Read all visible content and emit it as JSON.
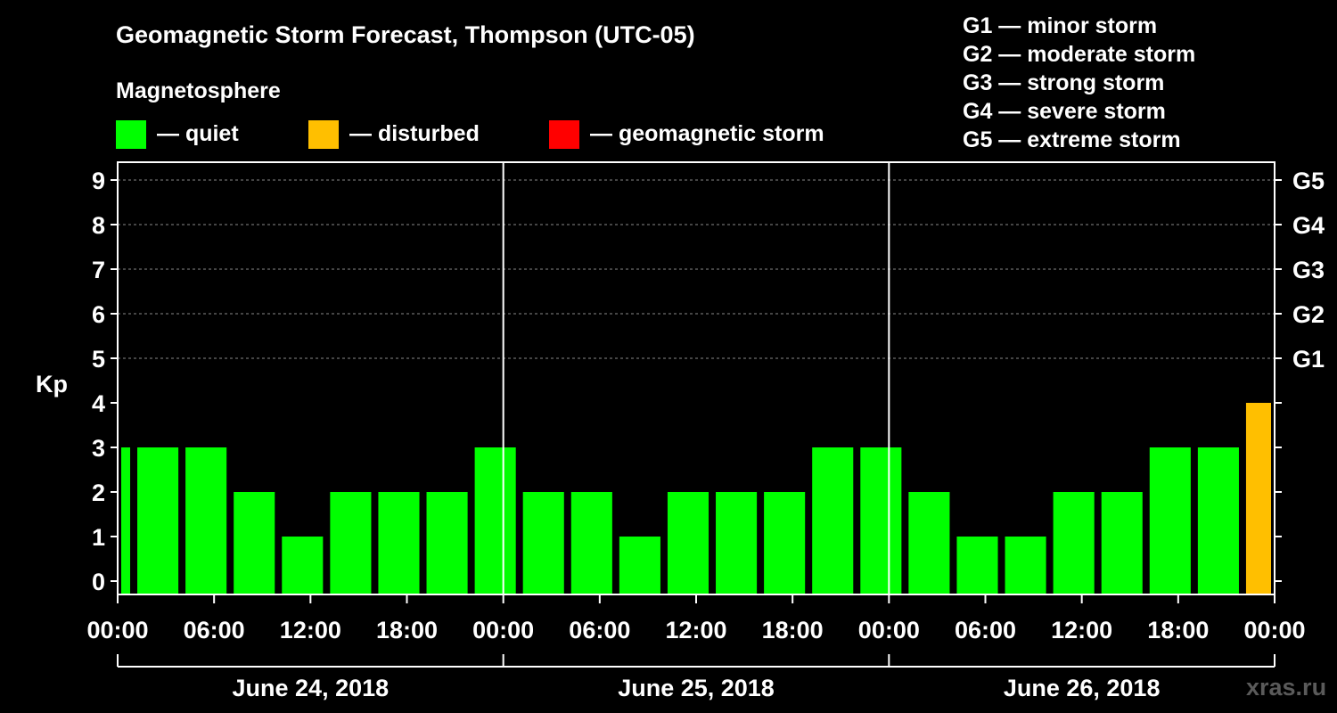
{
  "title": "Geomagnetic Storm Forecast, Thompson (UTC-05)",
  "legend": {
    "heading": "Magnetosphere",
    "items": [
      {
        "label": "— quiet",
        "color": "#00ff00"
      },
      {
        "label": "— disturbed",
        "color": "#ffbf00"
      },
      {
        "label": "— geomagnetic storm",
        "color": "#ff0000"
      }
    ]
  },
  "storm_scale": [
    "G1 — minor storm",
    "G2 — moderate storm",
    "G3 — strong storm",
    "G4 — severe storm",
    "G5 — extreme storm"
  ],
  "watermark": "xras.ru",
  "chart_data": {
    "type": "bar",
    "ylabel": "Kp",
    "ylim": [
      0,
      9
    ],
    "yticks": [
      0,
      1,
      2,
      3,
      4,
      5,
      6,
      7,
      8,
      9
    ],
    "g_levels": [
      {
        "label": "G1",
        "kp": 5
      },
      {
        "label": "G2",
        "kp": 6
      },
      {
        "label": "G3",
        "kp": 7
      },
      {
        "label": "G4",
        "kp": 8
      },
      {
        "label": "G5",
        "kp": 9
      }
    ],
    "grid": "horizontal dashed at Kp 5-9",
    "x_tick_labels": [
      "00:00",
      "06:00",
      "12:00",
      "18:00",
      "00:00",
      "06:00",
      "12:00",
      "18:00",
      "00:00",
      "06:00",
      "12:00",
      "18:00",
      "00:00"
    ],
    "days": [
      "June 24, 2018",
      "June 25, 2018",
      "June 26, 2018"
    ],
    "bars": [
      {
        "start_hour": 0,
        "end_hour": 1,
        "kp": 3,
        "status": "quiet"
      },
      {
        "start_hour": 1,
        "end_hour": 4,
        "kp": 3,
        "status": "quiet"
      },
      {
        "start_hour": 4,
        "end_hour": 7,
        "kp": 3,
        "status": "quiet"
      },
      {
        "start_hour": 7,
        "end_hour": 10,
        "kp": 2,
        "status": "quiet"
      },
      {
        "start_hour": 10,
        "end_hour": 13,
        "kp": 1,
        "status": "quiet"
      },
      {
        "start_hour": 13,
        "end_hour": 16,
        "kp": 2,
        "status": "quiet"
      },
      {
        "start_hour": 16,
        "end_hour": 19,
        "kp": 2,
        "status": "quiet"
      },
      {
        "start_hour": 19,
        "end_hour": 22,
        "kp": 2,
        "status": "quiet"
      },
      {
        "start_hour": 22,
        "end_hour": 25,
        "kp": 3,
        "status": "quiet"
      },
      {
        "start_hour": 25,
        "end_hour": 28,
        "kp": 2,
        "status": "quiet"
      },
      {
        "start_hour": 28,
        "end_hour": 31,
        "kp": 2,
        "status": "quiet"
      },
      {
        "start_hour": 31,
        "end_hour": 34,
        "kp": 1,
        "status": "quiet"
      },
      {
        "start_hour": 34,
        "end_hour": 37,
        "kp": 2,
        "status": "quiet"
      },
      {
        "start_hour": 37,
        "end_hour": 40,
        "kp": 2,
        "status": "quiet"
      },
      {
        "start_hour": 40,
        "end_hour": 43,
        "kp": 2,
        "status": "quiet"
      },
      {
        "start_hour": 43,
        "end_hour": 46,
        "kp": 3,
        "status": "quiet"
      },
      {
        "start_hour": 46,
        "end_hour": 49,
        "kp": 3,
        "status": "quiet"
      },
      {
        "start_hour": 49,
        "end_hour": 52,
        "kp": 2,
        "status": "quiet"
      },
      {
        "start_hour": 52,
        "end_hour": 55,
        "kp": 1,
        "status": "quiet"
      },
      {
        "start_hour": 55,
        "end_hour": 58,
        "kp": 1,
        "status": "quiet"
      },
      {
        "start_hour": 58,
        "end_hour": 61,
        "kp": 2,
        "status": "quiet"
      },
      {
        "start_hour": 61,
        "end_hour": 64,
        "kp": 2,
        "status": "quiet"
      },
      {
        "start_hour": 64,
        "end_hour": 67,
        "kp": 3,
        "status": "quiet"
      },
      {
        "start_hour": 67,
        "end_hour": 70,
        "kp": 3,
        "status": "quiet"
      },
      {
        "start_hour": 70,
        "end_hour": 72,
        "kp": 4,
        "status": "disturbed"
      }
    ],
    "status_colors": {
      "quiet": "#00ff00",
      "disturbed": "#ffbf00",
      "storm": "#ff0000"
    }
  }
}
